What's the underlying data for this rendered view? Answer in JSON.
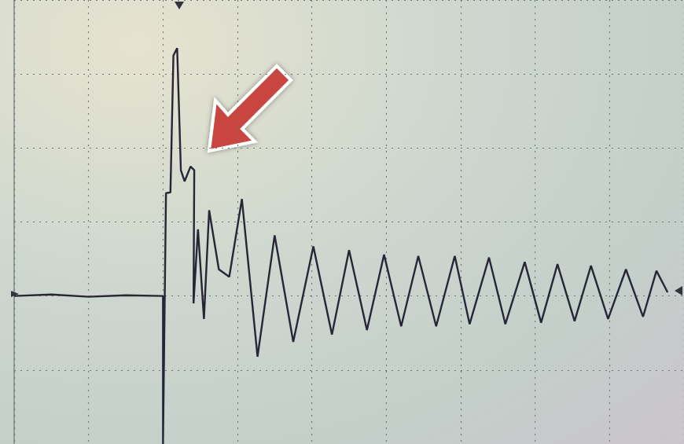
{
  "chart_data": {
    "type": "line",
    "color": "#262636",
    "grid": true,
    "tick_labels": false,
    "xlim": [
      0,
      9
    ],
    "xticks": [
      0,
      1,
      2,
      3,
      4,
      5,
      6,
      7,
      8,
      9
    ],
    "ylim": [
      -2,
      4
    ],
    "yticks": [
      -2,
      -1,
      0,
      1,
      2,
      3,
      4
    ],
    "x": [
      0,
      0.5,
      1,
      1.5,
      1.99,
      2.0,
      2.0,
      2.04,
      2.1,
      2.14,
      2.19,
      2.24,
      2.29,
      2.37,
      2.42,
      2.41,
      2.47,
      2.55,
      2.62,
      2.75,
      2.89,
      3.06,
      3.27,
      3.5,
      3.75,
      4.02,
      4.27,
      4.5,
      4.74,
      4.97,
      5.2,
      5.43,
      5.67,
      5.92,
      6.12,
      6.38,
      6.6,
      6.86,
      7.08,
      7.3,
      7.53,
      7.75,
      7.98,
      8.22,
      8.45,
      8.63,
      8.78
    ],
    "values": [
      0,
      0.02,
      -0.01,
      0.01,
      0,
      0,
      -2,
      1.39,
      1.4,
      3.25,
      3.35,
      1.7,
      1.55,
      1.75,
      1.7,
      -0.1,
      0.9,
      -0.31,
      1.16,
      0.36,
      0.26,
      1.31,
      -0.82,
      0.82,
      -0.62,
      0.67,
      -0.52,
      0.62,
      -0.46,
      0.56,
      -0.41,
      0.54,
      -0.41,
      0.54,
      -0.38,
      0.52,
      -0.38,
      0.46,
      -0.36,
      0.43,
      -0.34,
      0.41,
      -0.31,
      0.36,
      -0.28,
      0.34,
      0.05
    ]
  }
}
